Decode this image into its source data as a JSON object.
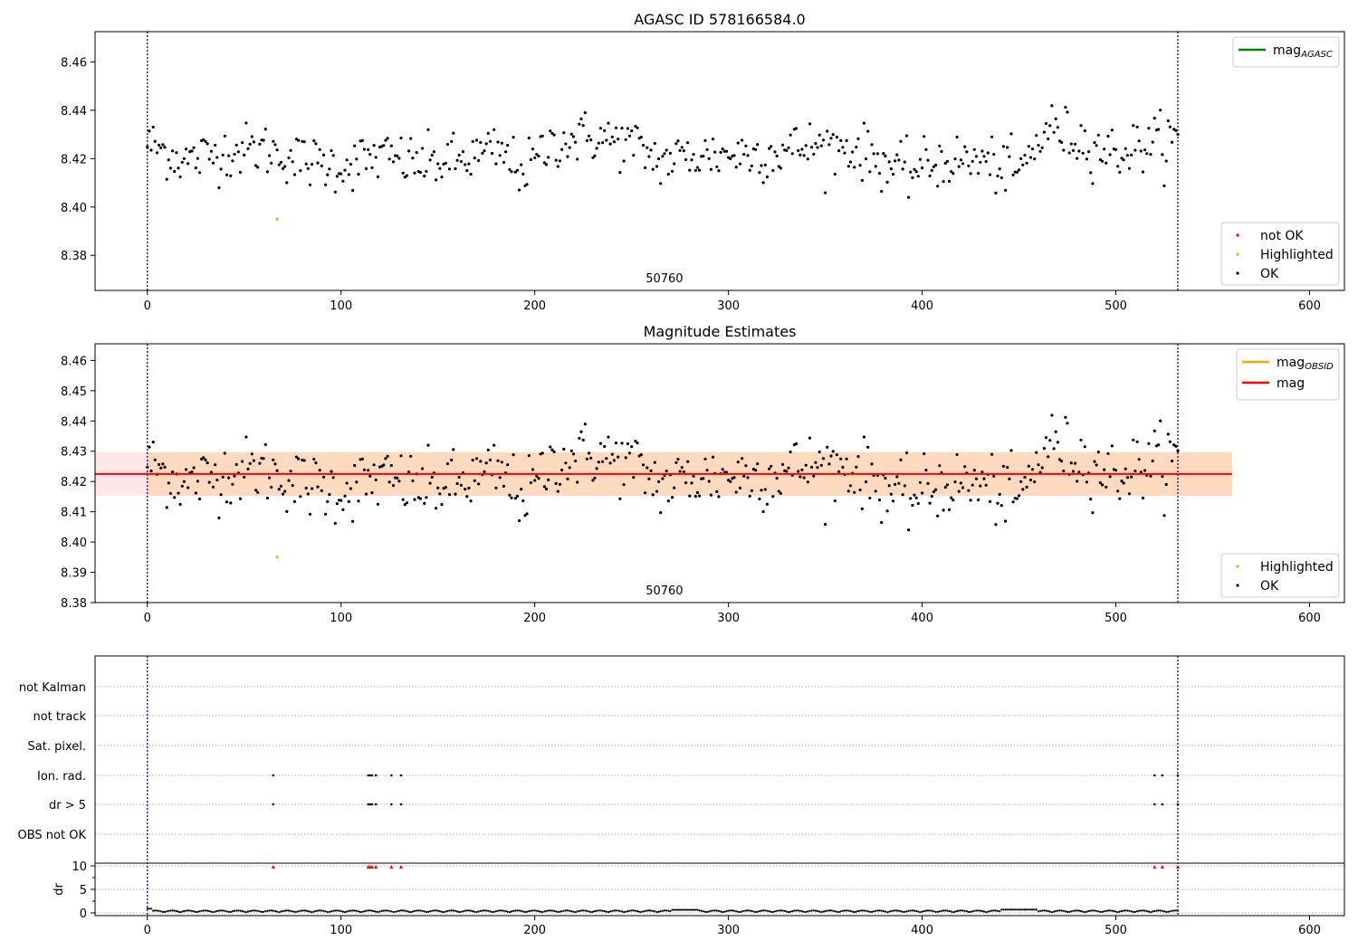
{
  "chart_data": [
    {
      "type": "scatter",
      "title": "AGASC ID 578166584.0",
      "xlim": [
        -27,
        618
      ],
      "ylim": [
        8.3655,
        8.4725
      ],
      "xticks": [
        0,
        100,
        200,
        300,
        400,
        500,
        600
      ],
      "yticks": [
        8.38,
        8.4,
        8.42,
        8.44,
        8.46
      ],
      "ytick_labels": [
        "8.38",
        "8.40",
        "8.42",
        "8.44",
        "8.46"
      ],
      "vlines": [
        0,
        532
      ],
      "vline_color": "#800080",
      "obsid_label": "50760",
      "obsid_label_x": 266,
      "series": [
        {
          "name": "not OK",
          "color": "#ff0000",
          "points": []
        },
        {
          "name": "Highlighted",
          "color": "#ffa500",
          "points": [
            [
              67,
              8.395
            ]
          ]
        },
        {
          "name": "OK",
          "color": "#000000",
          "generated": "ok_points"
        }
      ],
      "legend_upper": [
        {
          "label": "mag",
          "sub": "AGASC",
          "color": "#008000"
        }
      ],
      "legend_lower": [
        {
          "label": "not OK",
          "color": "#ff0000"
        },
        {
          "label": "Highlighted",
          "color": "#ffa500"
        },
        {
          "label": "OK",
          "color": "#000000"
        }
      ],
      "grid": false
    },
    {
      "type": "scatter",
      "title": "Magnitude Estimates",
      "xlim": [
        -27,
        618
      ],
      "ylim": [
        8.38,
        8.4655
      ],
      "xticks": [
        0,
        100,
        200,
        300,
        400,
        500,
        600
      ],
      "yticks": [
        8.38,
        8.39,
        8.4,
        8.41,
        8.42,
        8.43,
        8.44,
        8.45,
        8.46
      ],
      "ytick_labels": [
        "8.38",
        "8.39",
        "8.40",
        "8.41",
        "8.42",
        "8.43",
        "8.44",
        "8.45",
        "8.46"
      ],
      "vlines": [
        0,
        532
      ],
      "vline_color": "#800080",
      "obsid_label": "50760",
      "obsid_label_x": 266,
      "mag_line": {
        "value": 8.4225,
        "color": "#ff0000",
        "x_range": [
          -27,
          560
        ]
      },
      "band_outer": {
        "y_range": [
          8.4153,
          8.4297
        ],
        "x_range": [
          -27,
          560
        ],
        "color": "#ffb6c1",
        "opacity": 0.35
      },
      "band_inner": {
        "y_range": [
          8.4153,
          8.4297
        ],
        "x_range": [
          0,
          560
        ],
        "color": "#ffa500",
        "opacity": 0.18
      },
      "series": [
        {
          "name": "Highlighted",
          "color": "#ffa500",
          "points": [
            [
              67,
              8.395
            ]
          ]
        },
        {
          "name": "OK",
          "color": "#000000",
          "generated": "ok_points"
        }
      ],
      "legend_upper": [
        {
          "label": "mag",
          "sub": "OBSID",
          "color": "#ffa500"
        },
        {
          "label": "mag",
          "sub": "",
          "color": "#ff0000"
        }
      ],
      "legend_lower": [
        {
          "label": "Highlighted",
          "color": "#ffa500"
        },
        {
          "label": "OK",
          "color": "#000000"
        }
      ],
      "grid": false
    },
    {
      "type": "scatter",
      "title": "",
      "xlim": [
        -27,
        618
      ],
      "xticks": [
        0,
        100,
        200,
        300,
        400,
        500,
        600
      ],
      "vlines": [
        0,
        532
      ],
      "vline_color": "#800080",
      "flag_rows": [
        "not Kalman",
        "not track",
        "Sat. pixel.",
        "Ion. rad.",
        "dr > 5",
        "OBS not OK"
      ],
      "flag_points": {
        "Ion. rad.": [
          65,
          114,
          115,
          116,
          118,
          126,
          131,
          520,
          524,
          532
        ],
        "dr > 5": [
          65,
          114,
          115,
          116,
          118,
          126,
          131,
          520,
          524,
          532
        ]
      },
      "dr_ylabel": "dr",
      "dr_ylim": [
        0,
        10
      ],
      "dr_yticks": [
        0,
        5,
        10
      ],
      "dr_ytick_labels": [
        "0",
        "5",
        "10"
      ],
      "dr_high_points": [
        65,
        114,
        115,
        116,
        118,
        126,
        131,
        520,
        524,
        532
      ],
      "grid": true
    }
  ]
}
